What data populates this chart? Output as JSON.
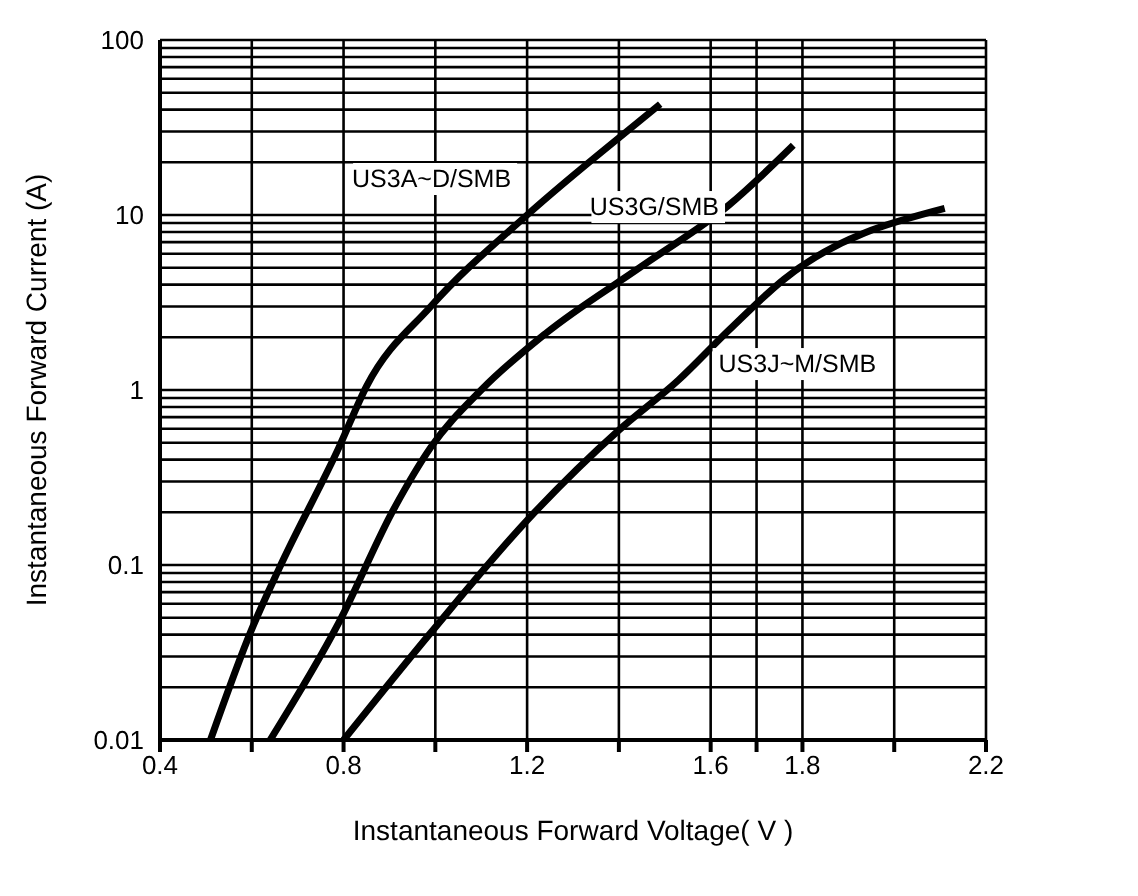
{
  "chart_data": {
    "type": "line",
    "xlabel": "Instantaneous Forward Voltage( V )",
    "ylabel": "Instantaneous Forward Current (A)",
    "log": "y",
    "grid": true,
    "legend": false,
    "marker": "none",
    "line_style": "solid",
    "xlim": [
      0.4,
      2.2
    ],
    "xticks": [
      0.4,
      {
        "value": 0.6,
        "label": null
      },
      0.8,
      {
        "value": 1.0,
        "label": null
      },
      1.2,
      {
        "value": 1.4,
        "label": null
      },
      1.6,
      {
        "value": 1.7,
        "label": null
      },
      1.8,
      {
        "value": 2.0,
        "label": null
      },
      2.2
    ],
    "ylim": [
      0.01,
      100
    ],
    "yticks": [
      0.01,
      {
        "value": 0.02,
        "label": null
      },
      {
        "value": 0.03,
        "label": null
      },
      {
        "value": 0.04,
        "label": null
      },
      {
        "value": 0.05,
        "label": null
      },
      {
        "value": 0.06,
        "label": null
      },
      {
        "value": 0.07,
        "label": null
      },
      {
        "value": 0.08,
        "label": null
      },
      {
        "value": 0.09,
        "label": null
      },
      0.1,
      {
        "value": 0.2,
        "label": null
      },
      {
        "value": 0.3,
        "label": null
      },
      {
        "value": 0.4,
        "label": null
      },
      {
        "value": 0.5,
        "label": null
      },
      {
        "value": 0.6,
        "label": null
      },
      {
        "value": 0.7,
        "label": null
      },
      {
        "value": 0.8,
        "label": null
      },
      {
        "value": 0.9,
        "label": null
      },
      1,
      {
        "value": 2,
        "label": null
      },
      {
        "value": 3,
        "label": null
      },
      {
        "value": 4,
        "label": null
      },
      {
        "value": 5,
        "label": null
      },
      {
        "value": 6,
        "label": null
      },
      {
        "value": 7,
        "label": null
      },
      {
        "value": 8,
        "label": null
      },
      {
        "value": 9,
        "label": null
      },
      10,
      {
        "value": 20,
        "label": null
      },
      {
        "value": 30,
        "label": null
      },
      {
        "value": 40,
        "label": null
      },
      {
        "value": 50,
        "label": null
      },
      {
        "value": 60,
        "label": null
      },
      {
        "value": 70,
        "label": null
      },
      {
        "value": 80,
        "label": null
      },
      {
        "value": 90,
        "label": null
      },
      100
    ],
    "series": [
      {
        "name": "US3A~D/SMB",
        "color": "#000000",
        "x": [
          0.51,
          0.6,
          0.66,
          0.79,
          0.85,
          0.99,
          1.2,
          1.43,
          1.49
        ],
        "values": [
          0.01,
          0.043,
          0.096,
          0.47,
          1.05,
          3.0,
          10,
          32,
          43
        ]
      },
      {
        "name": "US3G/SMB",
        "color": "#000000",
        "x": [
          0.64,
          0.79,
          0.91,
          0.99,
          1.1,
          1.24,
          1.45,
          1.64,
          1.78
        ],
        "values": [
          0.01,
          0.047,
          0.21,
          0.47,
          1.0,
          2.1,
          5.1,
          11.4,
          25
        ]
      },
      {
        "name": "US3J~M/SMB",
        "color": "#000000",
        "x": [
          0.8,
          0.99,
          1.2,
          1.4,
          1.53,
          1.64,
          1.76,
          2.11
        ],
        "values": [
          0.01,
          0.041,
          0.18,
          0.59,
          1.14,
          2.2,
          4.3,
          10.9
        ]
      }
    ]
  }
}
